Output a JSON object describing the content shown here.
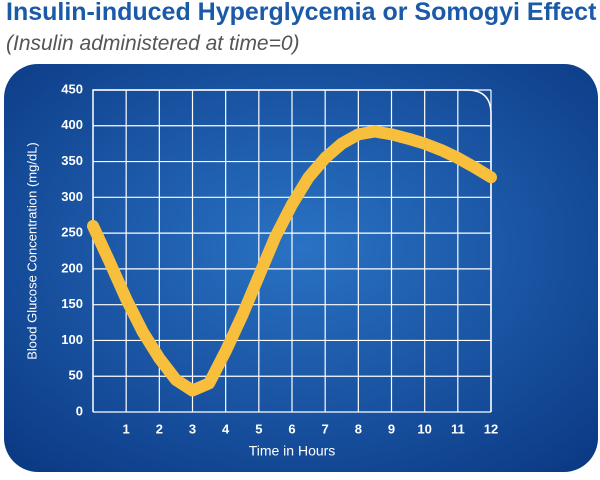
{
  "chart_data": {
    "type": "line",
    "title": "Insulin-induced Hyperglycemia or Somogyi Effect",
    "subtitle": "(Insulin administered at time=0)",
    "x_label": "Time in Hours",
    "y_label": "Blood Glucose Concentration (mg/dL)",
    "x": [
      0,
      0.5,
      1,
      1.5,
      2,
      2.5,
      3,
      3.5,
      4,
      4.5,
      5,
      5.5,
      6,
      6.5,
      7,
      7.5,
      8,
      8.5,
      9,
      9.5,
      10,
      10.5,
      11,
      11.5,
      12
    ],
    "series": [
      {
        "name": "Blood glucose",
        "color": "#f8bf3c",
        "values": [
          260,
          210,
          158,
          112,
          75,
          45,
          30,
          40,
          85,
          135,
          190,
          245,
          290,
          328,
          355,
          375,
          388,
          392,
          388,
          382,
          375,
          366,
          355,
          342,
          328
        ]
      }
    ],
    "xlim": [
      0,
      12
    ],
    "xticks": [
      1,
      2,
      3,
      4,
      5,
      6,
      7,
      8,
      9,
      10,
      11,
      12
    ],
    "ylim": [
      0,
      450
    ],
    "yticks": [
      0,
      50,
      100,
      150,
      200,
      250,
      300,
      350,
      400,
      450
    ],
    "grid": true
  }
}
